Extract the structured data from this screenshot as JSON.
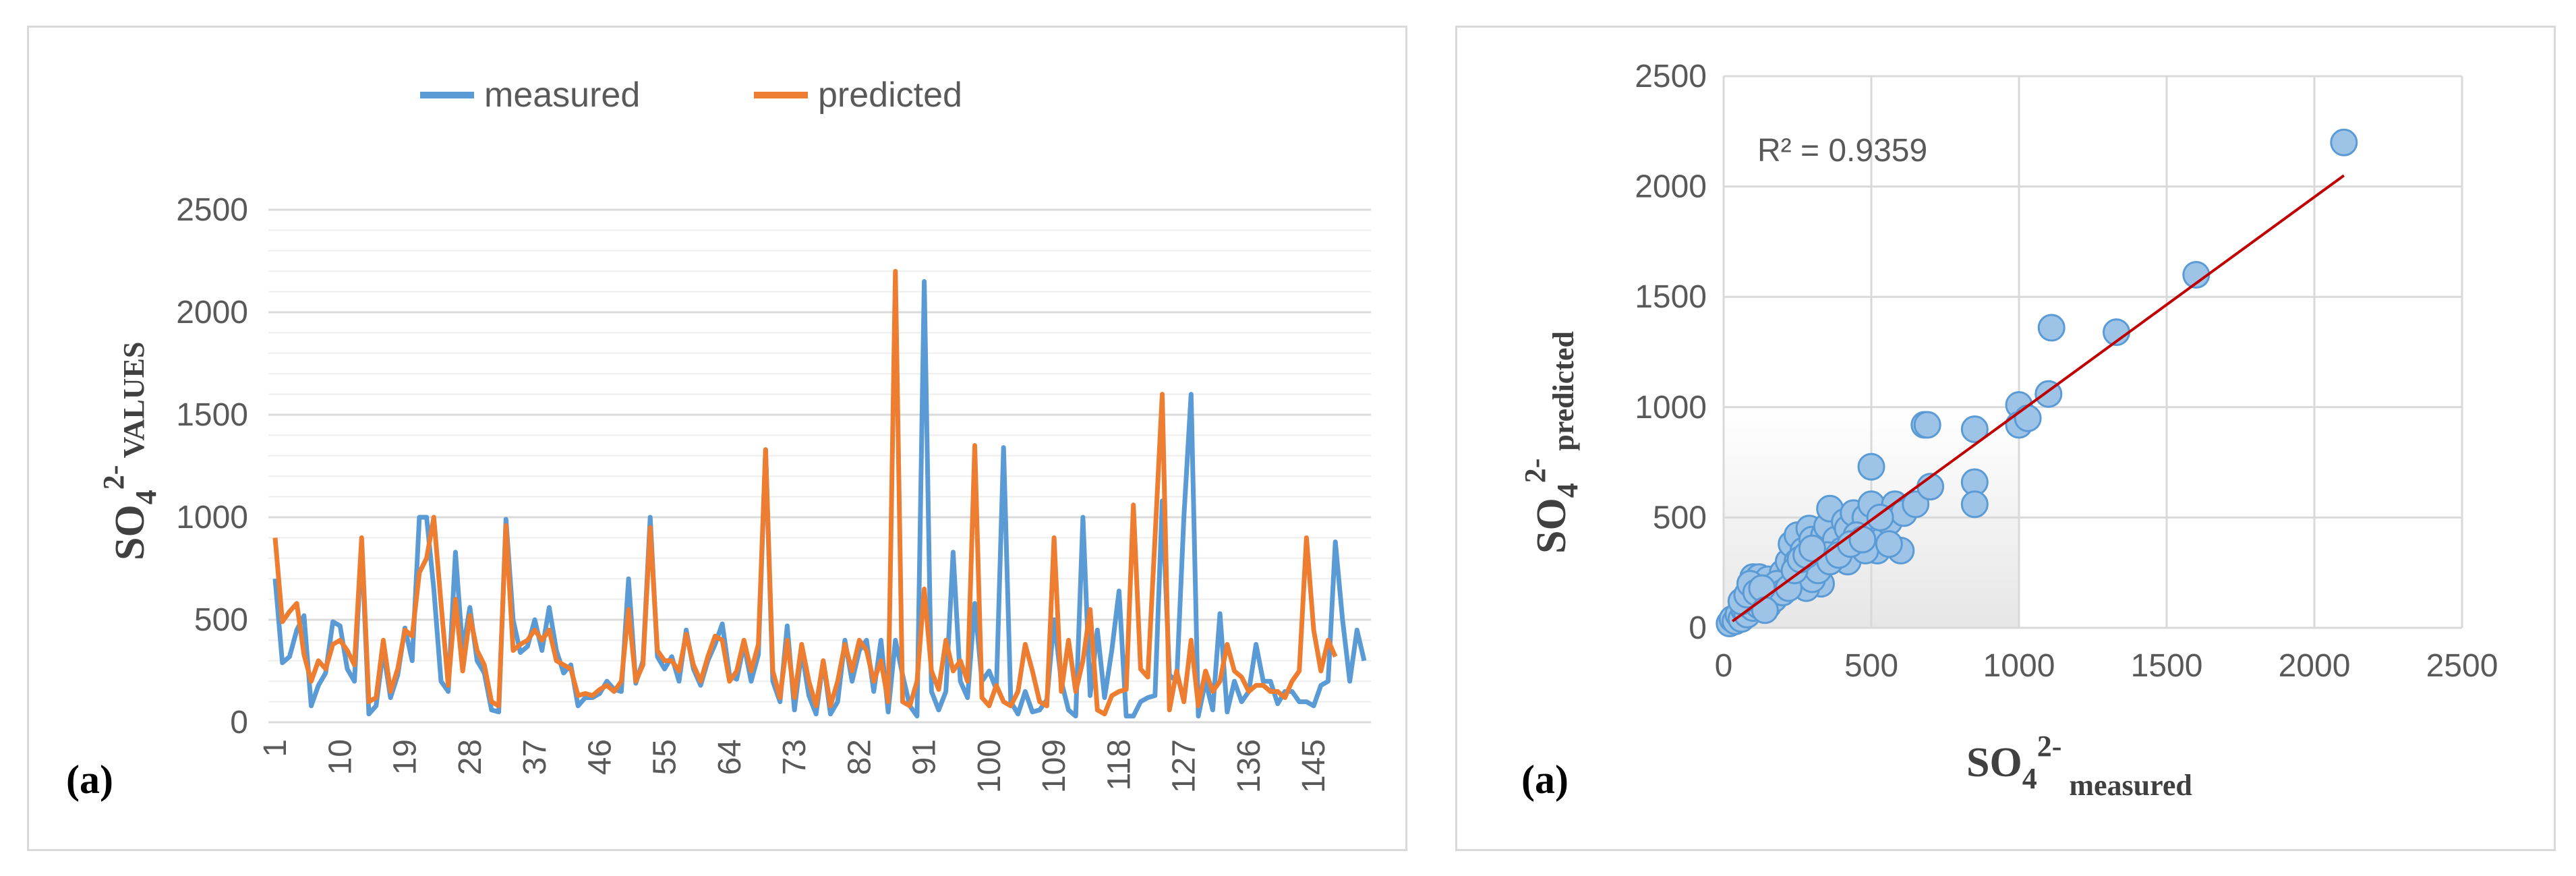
{
  "chart_data": [
    {
      "type": "line",
      "panel_label": "(a)",
      "ylabel_main": "SO",
      "ylabel_sub": "4",
      "ylabel_sup": "2-",
      "ylabel_suffix": " VALUES",
      "ylim": [
        0,
        2500
      ],
      "yticks": [
        "0",
        "500",
        "1000",
        "1500",
        "2000",
        "2500"
      ],
      "xticks": [
        "1",
        "10",
        "19",
        "28",
        "37",
        "46",
        "55",
        "64",
        "73",
        "82",
        "91",
        "100",
        "109",
        "118",
        "127",
        "136",
        "145"
      ],
      "x_count": 152,
      "legend": [
        "measured",
        "predicted"
      ],
      "legend_position": "top",
      "grid": true,
      "series": [
        {
          "name": "measured",
          "color": "#5b9bd5",
          "values": [
            700,
            290,
            320,
            450,
            520,
            80,
            180,
            240,
            490,
            470,
            260,
            200,
            870,
            40,
            80,
            350,
            120,
            230,
            460,
            300,
            1000,
            1000,
            650,
            200,
            150,
            830,
            350,
            560,
            300,
            240,
            60,
            50,
            990,
            500,
            340,
            370,
            500,
            350,
            560,
            350,
            240,
            280,
            80,
            120,
            120,
            140,
            200,
            160,
            150,
            700,
            190,
            300,
            1000,
            320,
            260,
            320,
            200,
            450,
            260,
            180,
            300,
            380,
            480,
            230,
            210,
            380,
            200,
            330,
            1330,
            200,
            100,
            470,
            60,
            350,
            130,
            40,
            300,
            40,
            100,
            400,
            200,
            350,
            400,
            150,
            400,
            50,
            400,
            230,
            80,
            30,
            2150,
            150,
            60,
            150,
            830,
            200,
            120,
            580,
            200,
            250,
            160,
            1340,
            100,
            40,
            150,
            50,
            60,
            110,
            500,
            200,
            60,
            30,
            1000,
            130,
            450,
            120,
            350,
            640,
            30,
            30,
            100,
            120,
            130,
            1080,
            230,
            200,
            1000,
            1600,
            30,
            200,
            60,
            530,
            50,
            200,
            100,
            150,
            380,
            200,
            200,
            90,
            150,
            150,
            100,
            100,
            80,
            180,
            200,
            880,
            500,
            200,
            450,
            300
          ],
          "_note": ""
        },
        {
          "name": "predicted",
          "color": "#ed7d31",
          "values": [
            900,
            490,
            540,
            580,
            330,
            200,
            300,
            260,
            380,
            400,
            350,
            280,
            900,
            100,
            120,
            400,
            150,
            260,
            450,
            420,
            730,
            800,
            1000,
            580,
            180,
            600,
            250,
            520,
            350,
            280,
            100,
            80,
            960,
            350,
            380,
            400,
            450,
            400,
            450,
            300,
            280,
            260,
            130,
            140,
            130,
            160,
            180,
            150,
            200,
            550,
            200,
            280,
            950,
            350,
            300,
            300,
            250,
            430,
            280,
            200,
            320,
            420,
            400,
            200,
            250,
            400,
            250,
            380,
            1330,
            250,
            120,
            400,
            120,
            380,
            200,
            80,
            300,
            80,
            200,
            380,
            250,
            400,
            350,
            200,
            300,
            100,
            2200,
            100,
            80,
            200,
            650,
            250,
            160,
            400,
            250,
            300,
            200,
            1350,
            120,
            80,
            180,
            100,
            80,
            150,
            380,
            250,
            100,
            80,
            900,
            150,
            400,
            150,
            300,
            550,
            60,
            40,
            130,
            150,
            160,
            1060,
            260,
            220,
            900,
            1600,
            60,
            250,
            100,
            400,
            80,
            250,
            150,
            200,
            380,
            250,
            220,
            150,
            180,
            180,
            150,
            150,
            120,
            200,
            250,
            900,
            450,
            250,
            400,
            320
          ]
        }
      ]
    },
    {
      "type": "scatter",
      "panel_label": "(a)",
      "xlabel_main": "SO",
      "xlabel_sub": "4",
      "xlabel_sup": "2-",
      "xlabel_suffix": " measured",
      "ylabel_main": "SO",
      "ylabel_sub": "4",
      "ylabel_sup": "2-",
      "ylabel_suffix": " predicted",
      "xlim": [
        0,
        2500
      ],
      "ylim": [
        0,
        2500
      ],
      "xticks": [
        "0",
        "500",
        "1000",
        "1500",
        "2000",
        "2500"
      ],
      "yticks": [
        "0",
        "500",
        "1000",
        "1500",
        "2000",
        "2500"
      ],
      "annotation": "R² = 0.9359",
      "grid": true,
      "point_color": "#9dc3e6",
      "point_edge": "#5b9bd5",
      "trendline_color": "#c00000",
      "trendline": [
        [
          30,
          30
        ],
        [
          2100,
          2050
        ]
      ],
      "points": [
        [
          20,
          20
        ],
        [
          30,
          40
        ],
        [
          40,
          30
        ],
        [
          50,
          60
        ],
        [
          60,
          40
        ],
        [
          70,
          80
        ],
        [
          80,
          60
        ],
        [
          90,
          100
        ],
        [
          100,
          90
        ],
        [
          110,
          120
        ],
        [
          120,
          100
        ],
        [
          130,
          150
        ],
        [
          140,
          120
        ],
        [
          150,
          170
        ],
        [
          160,
          140
        ],
        [
          170,
          180
        ],
        [
          180,
          160
        ],
        [
          190,
          200
        ],
        [
          200,
          220
        ],
        [
          210,
          190
        ],
        [
          60,
          120
        ],
        [
          80,
          150
        ],
        [
          100,
          230
        ],
        [
          120,
          230
        ],
        [
          150,
          220
        ],
        [
          200,
          250
        ],
        [
          220,
          300
        ],
        [
          230,
          380
        ],
        [
          250,
          300
        ],
        [
          250,
          420
        ],
        [
          270,
          350
        ],
        [
          280,
          260
        ],
        [
          290,
          450
        ],
        [
          300,
          400
        ],
        [
          310,
          330
        ],
        [
          320,
          370
        ],
        [
          330,
          300
        ],
        [
          340,
          420
        ],
        [
          350,
          460
        ],
        [
          360,
          540
        ],
        [
          380,
          400
        ],
        [
          400,
          350
        ],
        [
          410,
          480
        ],
        [
          420,
          450
        ],
        [
          440,
          520
        ],
        [
          460,
          430
        ],
        [
          480,
          500
        ],
        [
          500,
          560
        ],
        [
          500,
          730
        ],
        [
          510,
          380
        ],
        [
          520,
          350
        ],
        [
          540,
          400
        ],
        [
          560,
          480
        ],
        [
          580,
          560
        ],
        [
          600,
          350
        ],
        [
          610,
          520
        ],
        [
          650,
          560
        ],
        [
          680,
          920
        ],
        [
          690,
          920
        ],
        [
          700,
          640
        ],
        [
          850,
          900
        ],
        [
          850,
          660
        ],
        [
          850,
          560
        ],
        [
          1000,
          1010
        ],
        [
          1000,
          920
        ],
        [
          1030,
          950
        ],
        [
          1100,
          1060
        ],
        [
          1110,
          1360
        ],
        [
          1330,
          1340
        ],
        [
          1600,
          1600
        ],
        [
          2100,
          2200
        ],
        [
          180,
          200
        ],
        [
          260,
          240
        ],
        [
          330,
          200
        ],
        [
          350,
          330
        ],
        [
          420,
          300
        ],
        [
          450,
          420
        ],
        [
          480,
          350
        ],
        [
          530,
          500
        ],
        [
          560,
          380
        ],
        [
          240,
          200
        ],
        [
          280,
          180
        ],
        [
          300,
          220
        ],
        [
          320,
          260
        ],
        [
          360,
          300
        ],
        [
          390,
          330
        ],
        [
          430,
          380
        ],
        [
          470,
          400
        ],
        [
          150,
          100
        ],
        [
          170,
          130
        ],
        [
          200,
          160
        ],
        [
          220,
          180
        ],
        [
          240,
          260
        ],
        [
          260,
          310
        ],
        [
          280,
          330
        ],
        [
          300,
          360
        ],
        [
          90,
          200
        ],
        [
          110,
          160
        ],
        [
          130,
          180
        ],
        [
          140,
          80
        ]
      ]
    }
  ]
}
